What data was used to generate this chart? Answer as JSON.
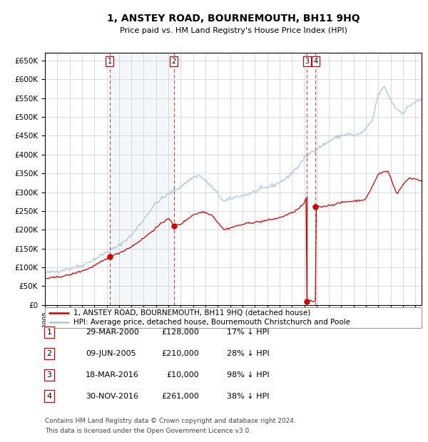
{
  "title": "1, ANSTEY ROAD, BOURNEMOUTH, BH11 9HQ",
  "subtitle": "Price paid vs. HM Land Registry's House Price Index (HPI)",
  "ylim": [
    0,
    670000
  ],
  "yticks": [
    0,
    50000,
    100000,
    150000,
    200000,
    250000,
    300000,
    350000,
    400000,
    450000,
    500000,
    550000,
    600000,
    650000
  ],
  "background_color": "#ffffff",
  "plot_bg_color": "#ffffff",
  "grid_color": "#cccccc",
  "hpi_color": "#aac4e0",
  "price_color": "#cc0000",
  "transactions": [
    {
      "id": 1,
      "date_num": 2000.24,
      "price": 128000,
      "label": "1"
    },
    {
      "id": 2,
      "date_num": 2005.44,
      "price": 210000,
      "label": "2"
    },
    {
      "id": 3,
      "date_num": 2016.22,
      "price": 10000,
      "label": "3"
    },
    {
      "id": 4,
      "date_num": 2016.92,
      "price": 261000,
      "label": "4"
    }
  ],
  "transaction_labels": [
    {
      "num": 1,
      "date": "29-MAR-2000",
      "price": "£128,000",
      "pct": "17% ↓ HPI"
    },
    {
      "num": 2,
      "date": "09-JUN-2005",
      "price": "£210,000",
      "pct": "28% ↓ HPI"
    },
    {
      "num": 3,
      "date": "18-MAR-2016",
      "price": "£10,000",
      "pct": "98% ↓ HPI"
    },
    {
      "num": 4,
      "date": "30-NOV-2016",
      "price": "£261,000",
      "pct": "38% ↓ HPI"
    }
  ],
  "legend1": "1, ANSTEY ROAD, BOURNEMOUTH, BH11 9HQ (detached house)",
  "legend2": "HPI: Average price, detached house, Bournemouth Christchurch and Poole",
  "footnote1": "Contains HM Land Registry data © Crown copyright and database right 2024.",
  "footnote2": "This data is licensed under the Open Government Licence v3.0.",
  "shaded_region": [
    2000.24,
    2005.44
  ],
  "xmin": 1995.0,
  "xmax": 2025.5
}
